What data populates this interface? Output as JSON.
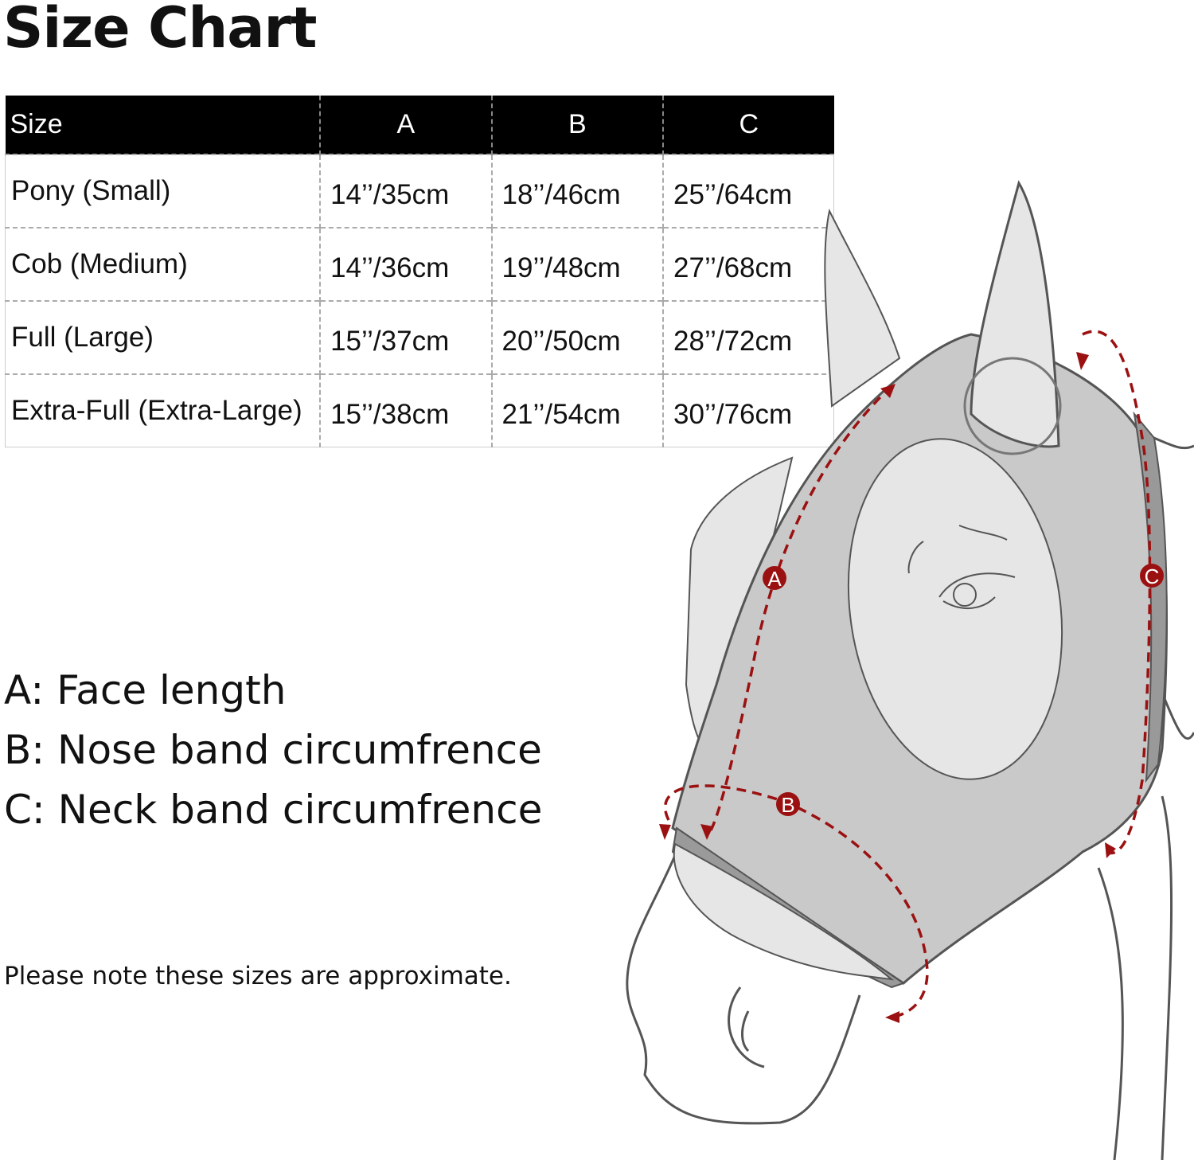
{
  "title": "Size Chart",
  "table": {
    "headers": [
      "Size",
      "A",
      "B",
      "C"
    ],
    "rows": [
      [
        "Pony (Small)",
        "14’’/35cm",
        "18’’/46cm",
        "25’’/64cm"
      ],
      [
        "Cob (Medium)",
        "14’’/36cm",
        "19’’/48cm",
        "27’’/68cm"
      ],
      [
        "Full (Large)",
        "15’’/37cm",
        "20’’/50cm",
        "28’’/72cm"
      ],
      [
        "Extra-Full (Extra-Large)",
        "15’’/38cm",
        "21’’/54cm",
        "30’’/76cm"
      ]
    ]
  },
  "legend": [
    "A: Face length",
    "B: Nose band circumfrence",
    "C: Neck band circumfrence"
  ],
  "note": "Please note these sizes are approximate.",
  "diagram": {
    "markers": [
      "A",
      "B",
      "C"
    ],
    "colors": {
      "measure": "#9b1111",
      "mask": "#c9c9c9",
      "ears": "#e6e6e6",
      "outline": "#555555"
    }
  }
}
